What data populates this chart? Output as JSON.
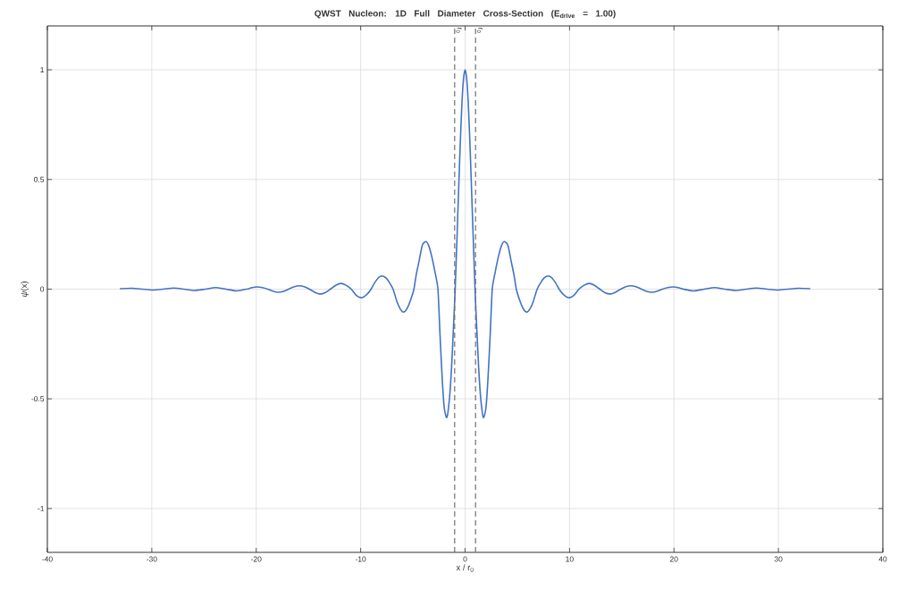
{
  "chart_data": {
    "type": "line",
    "title": "QWST Nucleon: 1D Full Diameter Cross-Section    (E$_{drive}$ = 1.00)",
    "xlabel": "x / r$_{0}$",
    "ylabel": "*ψ*(x)",
    "x": [
      -33,
      -31.9,
      -30.9,
      -29.9,
      -28.9,
      -27.9,
      -26.9,
      -25.9,
      -24.9,
      -23.9,
      -22.9,
      -21.9,
      -20.9,
      -20.4,
      -19.9,
      -19.4,
      -18.9,
      -18.4,
      -17.9,
      -17.4,
      -16.9,
      -16.4,
      -15.9,
      -15.4,
      -14.9,
      -14.4,
      -13.9,
      -13.4,
      -12.9,
      -12.4,
      -11.9,
      -11.4,
      -10.9,
      -10.4,
      -9.9,
      -9.4,
      -9.0,
      -8.7,
      -8.3,
      -7.95,
      -7.6,
      -7.3,
      -6.9,
      -6.5,
      -6.1,
      -5.8,
      -5.5,
      -5.2,
      -4.9,
      -4.7,
      -4.4,
      -4.1,
      -3.75,
      -3.5,
      -3.2,
      -2.85,
      -2.6,
      -2.4,
      -2.2,
      -2.0,
      -1.75,
      -1.5,
      -1.3,
      -1.1,
      -0.95,
      -0.75,
      -0.6,
      -0.45,
      -0.3,
      -0.15,
      0,
      0.15,
      0.3,
      0.45,
      0.6,
      0.75,
      0.95,
      1.1,
      1.3,
      1.5,
      1.75,
      2.0,
      2.2,
      2.4,
      2.6,
      2.85,
      3.2,
      3.5,
      3.75,
      4.1,
      4.4,
      4.7,
      4.9,
      5.2,
      5.5,
      5.8,
      6.1,
      6.5,
      6.9,
      7.3,
      7.6,
      7.95,
      8.3,
      8.7,
      9.0,
      9.4,
      9.9,
      10.4,
      10.9,
      11.4,
      11.9,
      12.4,
      12.9,
      13.4,
      13.9,
      14.4,
      14.9,
      15.4,
      15.9,
      16.4,
      16.9,
      17.4,
      17.9,
      18.4,
      18.9,
      19.4,
      19.9,
      20.4,
      20.9,
      21.9,
      22.9,
      23.9,
      24.9,
      25.9,
      26.9,
      27.9,
      28.9,
      29.9,
      30.9,
      31.9,
      33
    ],
    "series": [
      {
        "color": "#4472c4",
        "values": [
          0.002,
          0.004,
          0,
          -0.004,
          0,
          0.005,
          0,
          -0.006,
          0,
          0.007,
          0,
          -0.008,
          0,
          0.007,
          0.01,
          0.007,
          0,
          -0.009,
          -0.014,
          -0.01,
          0,
          0.01,
          0.015,
          0.011,
          0,
          -0.014,
          -0.022,
          -0.016,
          0,
          0.017,
          0.026,
          0.018,
          0,
          -0.029,
          -0.039,
          -0.024,
          0,
          0.026,
          0.052,
          0.06,
          0.052,
          0.034,
          0,
          -0.06,
          -0.098,
          -0.103,
          -0.083,
          -0.047,
          0,
          0.06,
          0.13,
          0.2,
          0.217,
          0.2,
          0.15,
          0.07,
          0,
          -0.21,
          -0.4,
          -0.54,
          -0.585,
          -0.5,
          -0.36,
          -0.16,
          0,
          0.27,
          0.48,
          0.68,
          0.85,
          0.96,
          1,
          0.96,
          0.85,
          0.68,
          0.48,
          0.27,
          0,
          -0.16,
          -0.36,
          -0.5,
          -0.585,
          -0.54,
          -0.4,
          -0.21,
          0,
          0.07,
          0.15,
          0.2,
          0.217,
          0.2,
          0.13,
          0.06,
          0,
          -0.047,
          -0.083,
          -0.103,
          -0.098,
          -0.06,
          0,
          0.034,
          0.052,
          0.06,
          0.052,
          0.026,
          0,
          -0.024,
          -0.039,
          -0.029,
          0,
          0.018,
          0.026,
          0.017,
          0,
          -0.016,
          -0.022,
          -0.014,
          0,
          0.011,
          0.015,
          0.01,
          0,
          -0.01,
          -0.014,
          -0.009,
          0,
          0.007,
          0.01,
          0.007,
          0,
          -0.008,
          0,
          0.007,
          0,
          -0.006,
          0,
          0.005,
          0,
          -0.004,
          0,
          0.004,
          0.002
        ]
      }
    ],
    "xlim": [
      -40,
      40
    ],
    "ylim": [
      -1.2,
      1.2
    ],
    "xticks": [
      -40,
      -30,
      -20,
      -10,
      0,
      10,
      20,
      30,
      40
    ],
    "yticks": [
      -1,
      -0.5,
      0,
      0.5,
      1
    ],
    "grid": true,
    "line_style": "solid",
    "ref_lines": [
      {
        "axis": "x",
        "value": -1,
        "label": "r$_{0}$",
        "color": "#707070",
        "line_style": "dashed"
      },
      {
        "axis": "x",
        "value": 1,
        "label": "r$_{0}$",
        "color": "#707070",
        "line_style": "dashed"
      }
    ]
  }
}
